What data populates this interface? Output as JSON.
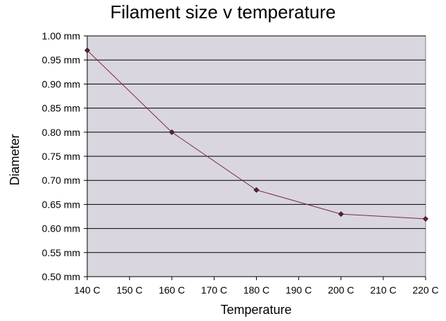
{
  "chart_data": {
    "type": "line",
    "title": "Filament size v temperature",
    "xlabel": "Temperature",
    "ylabel": "Diameter",
    "x_ticks": [
      "140 C",
      "150 C",
      "160 C",
      "170 C",
      "180 C",
      "190 C",
      "200 C",
      "210 C",
      "220 C"
    ],
    "y_ticks": [
      "0.50  mm",
      "0.55  mm",
      "0.60  mm",
      "0.65  mm",
      "0.70  mm",
      "0.75  mm",
      "0.80  mm",
      "0.85  mm",
      "0.90  mm",
      "0.95  mm",
      "1.00  mm"
    ],
    "xlim": [
      140,
      220
    ],
    "ylim": [
      0.5,
      1.0
    ],
    "grid": true,
    "series": [
      {
        "x": [
          140,
          160,
          180,
          200,
          220
        ],
        "values": [
          0.97,
          0.8,
          0.68,
          0.63,
          0.62
        ]
      }
    ],
    "colors": {
      "plot_background": "#d9d6df",
      "line": "#7a2a44",
      "marker": "#6b1e3a",
      "grid": "#000000"
    }
  }
}
